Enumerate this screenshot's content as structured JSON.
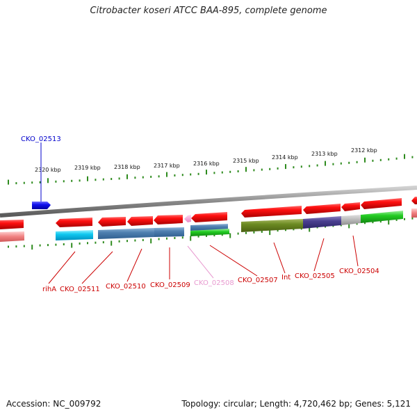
{
  "title": "Citrobacter koseri ATCC BAA-895, complete genome",
  "footer": {
    "accession": "Accession: NC_009792",
    "topology": "Topology: circular; Length: 4,720,462 bp; Genes: 5,121"
  },
  "colors": {
    "backbone": "#7a7a7a",
    "tick": "#2e8b1e",
    "gene_label_red": "#cc0000",
    "gene_label_pink": "#e89ad0",
    "gene_label_blue": "#0000cc"
  },
  "kbp_labels": [
    "2320 kbp",
    "2319 kbp",
    "2318 kbp",
    "2317 kbp",
    "2316 kbp",
    "2315 kbp",
    "2314 kbp",
    "2313 kbp",
    "2312 kbp"
  ],
  "gene_labels": [
    {
      "text": "CKO_02513",
      "color": "blue"
    },
    {
      "text": "rihA",
      "color": "red"
    },
    {
      "text": "CKO_02511",
      "color": "red"
    },
    {
      "text": "CKO_02510",
      "color": "red"
    },
    {
      "text": "CKO_02509",
      "color": "red"
    },
    {
      "text": "CKO_02508",
      "color": "pink"
    },
    {
      "text": "CKO_02507",
      "color": "red"
    },
    {
      "text": "Int",
      "color": "red"
    },
    {
      "text": "CKO_02505",
      "color": "red"
    },
    {
      "text": "CKO_02504",
      "color": "red"
    }
  ]
}
